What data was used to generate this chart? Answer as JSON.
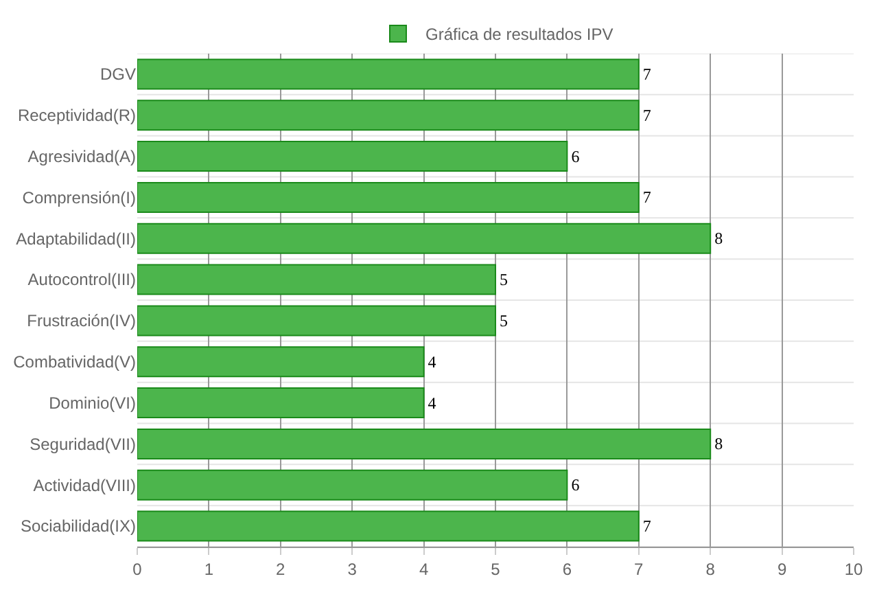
{
  "chart_data": {
    "type": "bar",
    "orientation": "horizontal",
    "categories": [
      "DGV",
      "Receptividad(R)",
      "Agresividad(A)",
      "Comprensión(I)",
      "Adaptabilidad(II)",
      "Autocontrol(III)",
      "Frustración(IV)",
      "Combatividad(V)",
      "Dominio(VI)",
      "Seguridad(VII)",
      "Actividad(VIII)",
      "Sociabilidad(IX)"
    ],
    "series": [
      {
        "name": "Gráfica de resultados IPV",
        "color": "#4cb54c",
        "values": [
          7,
          7,
          6,
          7,
          8,
          5,
          5,
          4,
          4,
          8,
          6,
          7
        ]
      }
    ],
    "xlim": [
      0,
      10
    ],
    "xticks": [
      0,
      1,
      2,
      3,
      4,
      5,
      6,
      7,
      8,
      9,
      10
    ],
    "grid": true,
    "legend": "top",
    "data_labels": true
  }
}
